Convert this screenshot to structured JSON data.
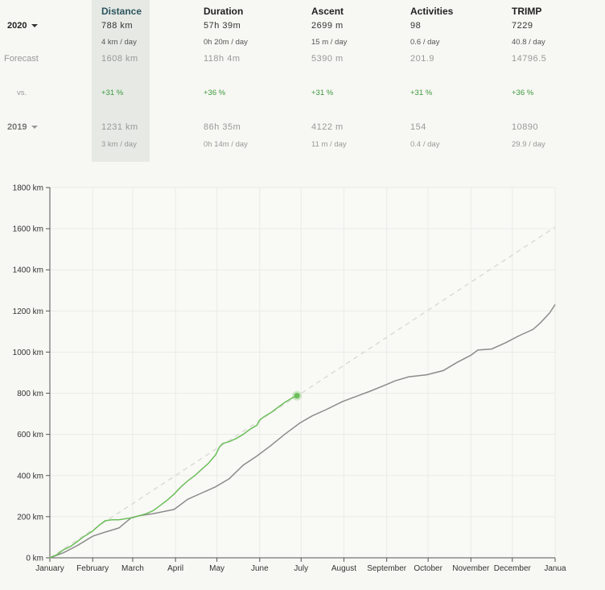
{
  "stats": {
    "headers": [
      "Distance",
      "Duration",
      "Ascent",
      "Activities",
      "TRIMP"
    ],
    "current": {
      "year": "2020",
      "values": [
        "788 km",
        "57h 39m",
        "2699 m",
        "98",
        "7229"
      ],
      "per_day": [
        "4 km / day",
        "0h 20m / day",
        "15 m / day",
        "0.6 / day",
        "40.8 / day"
      ]
    },
    "forecast": {
      "label": "Forecast",
      "values": [
        "1608 km",
        "118h 4m",
        "5390 m",
        "201.9",
        "14796.5"
      ]
    },
    "vs": {
      "label": "vs.",
      "values": [
        "+31 %",
        "+36 %",
        "+31 %",
        "+31 %",
        "+36 %"
      ]
    },
    "previous": {
      "year": "2019",
      "values": [
        "1231 km",
        "86h 35m",
        "4122 m",
        "154",
        "10890"
      ],
      "per_day": [
        "3 km / day",
        "0h 14m / day",
        "11 m / day",
        "0.4 / day",
        "29.9 / day"
      ]
    }
  },
  "chart_data": {
    "type": "line",
    "ylabel_unit": "km",
    "y_ticks": [
      "0 km",
      "200 km",
      "400 km",
      "600 km",
      "800 km",
      "1000 km",
      "1200 km",
      "1400 km",
      "1600 km",
      "1800 km"
    ],
    "ylim": [
      0,
      1800
    ],
    "x_months": [
      "January",
      "February",
      "March",
      "April",
      "May",
      "June",
      "July",
      "August",
      "September",
      "October",
      "November",
      "December",
      "Janua"
    ],
    "xlim_days": [
      0,
      366
    ],
    "grid": true,
    "colors": {
      "current": "#6cbf5a",
      "previous": "#8c8c8c",
      "forecast": "#dcdcd6",
      "grid": "#ebebe6"
    },
    "series": [
      {
        "year": "2020",
        "points": [
          [
            0,
            0
          ],
          [
            5,
            15
          ],
          [
            10,
            40
          ],
          [
            15,
            55
          ],
          [
            20,
            80
          ],
          [
            25,
            105
          ],
          [
            31,
            130
          ],
          [
            36,
            160
          ],
          [
            40,
            180
          ],
          [
            45,
            185
          ],
          [
            50,
            185
          ],
          [
            55,
            190
          ],
          [
            60,
            195
          ],
          [
            65,
            205
          ],
          [
            70,
            215
          ],
          [
            75,
            230
          ],
          [
            80,
            255
          ],
          [
            85,
            280
          ],
          [
            90,
            310
          ],
          [
            95,
            345
          ],
          [
            100,
            375
          ],
          [
            105,
            400
          ],
          [
            110,
            430
          ],
          [
            115,
            460
          ],
          [
            120,
            500
          ],
          [
            123,
            540
          ],
          [
            125,
            555
          ],
          [
            130,
            565
          ],
          [
            135,
            580
          ],
          [
            140,
            600
          ],
          [
            145,
            625
          ],
          [
            150,
            645
          ],
          [
            152,
            670
          ],
          [
            156,
            690
          ],
          [
            160,
            705
          ],
          [
            165,
            730
          ],
          [
            170,
            755
          ],
          [
            175,
            775
          ],
          [
            179,
            788
          ]
        ]
      },
      {
        "year": "2019",
        "points": [
          [
            0,
            0
          ],
          [
            10,
            25
          ],
          [
            20,
            60
          ],
          [
            31,
            105
          ],
          [
            40,
            125
          ],
          [
            50,
            145
          ],
          [
            59,
            195
          ],
          [
            65,
            205
          ],
          [
            75,
            215
          ],
          [
            90,
            235
          ],
          [
            100,
            285
          ],
          [
            110,
            315
          ],
          [
            120,
            345
          ],
          [
            130,
            385
          ],
          [
            140,
            450
          ],
          [
            150,
            495
          ],
          [
            160,
            545
          ],
          [
            170,
            600
          ],
          [
            181,
            655
          ],
          [
            190,
            690
          ],
          [
            200,
            720
          ],
          [
            212,
            760
          ],
          [
            222,
            785
          ],
          [
            232,
            810
          ],
          [
            243,
            840
          ],
          [
            250,
            860
          ],
          [
            260,
            880
          ],
          [
            273,
            890
          ],
          [
            285,
            910
          ],
          [
            295,
            950
          ],
          [
            305,
            985
          ],
          [
            310,
            1010
          ],
          [
            320,
            1015
          ],
          [
            330,
            1045
          ],
          [
            340,
            1080
          ],
          [
            350,
            1110
          ],
          [
            355,
            1140
          ],
          [
            362,
            1190
          ],
          [
            366,
            1231
          ]
        ]
      },
      {
        "name": "Forecast",
        "points": [
          [
            0,
            0
          ],
          [
            366,
            1608
          ]
        ]
      }
    ]
  }
}
